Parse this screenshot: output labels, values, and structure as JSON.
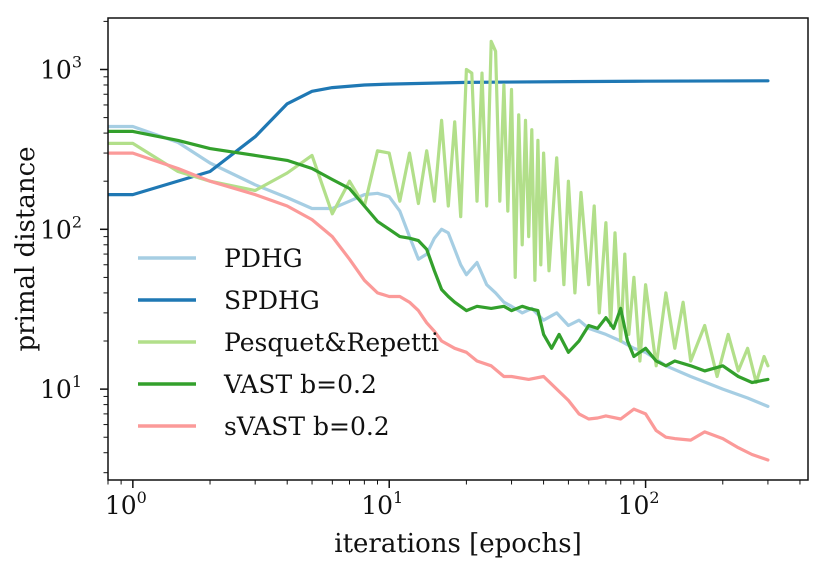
{
  "chart_data": {
    "type": "line",
    "xscale": "log",
    "yscale": "log",
    "xlabel": "iterations [epochs]",
    "ylabel": "primal distance",
    "xlim": [
      0.8,
      430
    ],
    "ylim": [
      2.7,
      2100
    ],
    "x_ticks": [
      {
        "base": "10",
        "exp": "0",
        "value": 1
      },
      {
        "base": "10",
        "exp": "1",
        "value": 10
      },
      {
        "base": "10",
        "exp": "2",
        "value": 100
      }
    ],
    "y_ticks": [
      {
        "base": "10",
        "exp": "1",
        "value": 10
      },
      {
        "base": "10",
        "exp": "2",
        "value": 100
      },
      {
        "base": "10",
        "exp": "3",
        "value": 1000
      }
    ],
    "legend_position": "lower-left",
    "series": [
      {
        "name": "PDHG",
        "color": "#a6cee3",
        "x": [
          0.8,
          1,
          1.5,
          2,
          3,
          4,
          5,
          6,
          7,
          8,
          9,
          10,
          11,
          12,
          13,
          14,
          15,
          16,
          17,
          18,
          19,
          20,
          22,
          24,
          26,
          28,
          30,
          33,
          36,
          40,
          45,
          50,
          55,
          60,
          70,
          80,
          90,
          100,
          120,
          150,
          200,
          250,
          300
        ],
        "y": [
          440,
          440,
          350,
          260,
          190,
          158,
          135,
          135,
          150,
          165,
          168,
          160,
          130,
          90,
          65,
          70,
          88,
          100,
          95,
          75,
          60,
          52,
          62,
          45,
          40,
          35,
          33,
          30,
          32,
          27,
          30,
          25,
          27,
          24,
          22,
          20,
          18,
          17,
          14,
          12,
          10,
          8.8,
          7.8
        ]
      },
      {
        "name": "SPDHG",
        "color": "#1f78b4",
        "x": [
          0.8,
          1,
          2,
          3,
          4,
          5,
          6,
          8,
          10,
          20,
          50,
          100,
          300
        ],
        "y": [
          165,
          165,
          230,
          380,
          610,
          730,
          770,
          800,
          810,
          830,
          840,
          845,
          850
        ]
      },
      {
        "name": "Pesquet&Repetti",
        "color": "#b2df8a",
        "x": [
          0.8,
          1,
          1.5,
          2,
          3,
          4,
          5,
          6,
          7,
          8,
          9,
          10,
          11,
          12,
          13,
          14,
          15,
          16,
          17,
          18,
          19,
          20,
          21,
          22,
          23,
          24,
          25,
          26,
          27,
          28,
          29,
          30,
          31,
          32,
          33,
          34,
          35,
          36,
          37,
          38,
          39,
          40,
          42,
          45,
          48,
          50,
          53,
          56,
          60,
          63,
          66,
          70,
          73,
          76,
          80,
          83,
          86,
          90,
          95,
          100,
          110,
          120,
          130,
          140,
          150,
          170,
          190,
          210,
          230,
          250,
          270,
          290,
          300
        ],
        "y": [
          345,
          345,
          230,
          200,
          175,
          225,
          290,
          125,
          200,
          140,
          310,
          300,
          150,
          300,
          145,
          310,
          150,
          480,
          140,
          470,
          120,
          1000,
          950,
          150,
          950,
          140,
          1500,
          1300,
          150,
          800,
          130,
          750,
          50,
          520,
          80,
          480,
          90,
          420,
          48,
          360,
          60,
          300,
          55,
          280,
          45,
          200,
          40,
          170,
          45,
          140,
          30,
          110,
          25,
          95,
          20,
          70,
          22,
          50,
          15,
          45,
          14,
          40,
          18,
          35,
          15,
          25,
          12,
          22,
          13,
          18,
          11,
          16,
          14
        ]
      },
      {
        "name": "VAST b=0.2",
        "color": "#33a02c",
        "x": [
          0.8,
          1,
          1.5,
          2,
          3,
          4,
          5,
          6,
          7,
          8,
          9,
          10,
          11,
          12,
          13,
          14,
          15,
          16,
          17,
          18,
          20,
          22,
          25,
          28,
          30,
          33,
          35,
          38,
          40,
          43,
          46,
          50,
          55,
          60,
          65,
          70,
          75,
          80,
          85,
          90,
          100,
          110,
          120,
          130,
          150,
          170,
          200,
          230,
          260,
          300
        ],
        "y": [
          410,
          410,
          360,
          320,
          290,
          270,
          240,
          205,
          180,
          140,
          112,
          100,
          90,
          88,
          85,
          75,
          55,
          42,
          38,
          35,
          31,
          33,
          32,
          33,
          31,
          33,
          32,
          31,
          22,
          18,
          22,
          17,
          20,
          25,
          24,
          28,
          24,
          32,
          20,
          16,
          18,
          15,
          14,
          15,
          14,
          13,
          14,
          12,
          11,
          11.5
        ]
      },
      {
        "name": "sVAST b=0.2",
        "color": "#fb9a99",
        "x": [
          0.8,
          1,
          1.5,
          2,
          3,
          4,
          5,
          6,
          7,
          8,
          9,
          10,
          11,
          12,
          13,
          14,
          15,
          16,
          18,
          20,
          22,
          25,
          28,
          30,
          35,
          40,
          45,
          50,
          55,
          60,
          65,
          70,
          80,
          90,
          100,
          110,
          120,
          130,
          150,
          170,
          200,
          230,
          260,
          300
        ],
        "y": [
          300,
          300,
          240,
          200,
          165,
          140,
          115,
          90,
          65,
          48,
          40,
          38,
          38,
          35,
          31,
          26,
          23,
          20,
          18,
          17,
          15,
          14,
          12,
          12,
          11.5,
          12,
          10,
          8.5,
          7,
          6.5,
          6.6,
          6.8,
          6.5,
          7.5,
          7,
          5.5,
          5,
          4.9,
          4.8,
          5.4,
          4.9,
          4.3,
          3.9,
          3.6
        ]
      }
    ]
  }
}
